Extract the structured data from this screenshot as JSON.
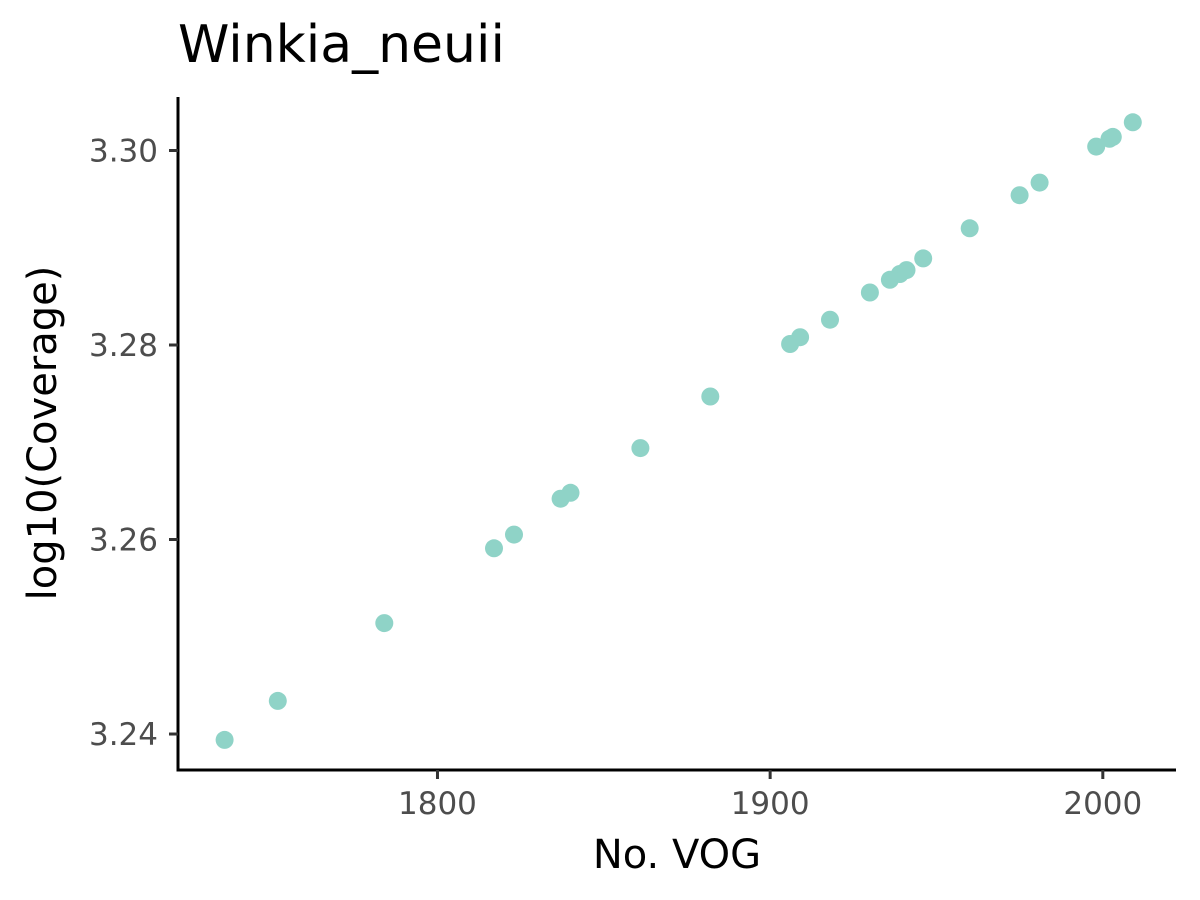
{
  "chart_data": {
    "type": "scatter",
    "title": "Winkia_neuii",
    "xlabel": "No. VOG",
    "ylabel": "log10(Coverage)",
    "xlim": [
      1722,
      2022
    ],
    "ylim": [
      3.2363,
      3.3055
    ],
    "x_ticks": [
      1800,
      1900,
      2000
    ],
    "x_tick_labels": [
      "1800",
      "1900",
      "2000"
    ],
    "y_ticks": [
      3.24,
      3.26,
      3.28,
      3.3
    ],
    "y_tick_labels": [
      "3.24",
      "3.26",
      "3.28",
      "3.30"
    ],
    "grid": false,
    "legend": "none",
    "point_color": "#8fd3c7",
    "series": [
      {
        "x": [
          1736,
          1752,
          1784,
          1817,
          1823,
          1837,
          1840,
          1861,
          1882,
          1906,
          1909,
          1918,
          1930,
          1936,
          1939,
          1941,
          1946,
          1960,
          1975,
          1981,
          1998,
          2002,
          2003,
          2009
        ],
        "y": [
          3.2394,
          3.2434,
          3.2514,
          3.2591,
          3.2605,
          3.2642,
          3.2648,
          3.2694,
          3.2747,
          3.2801,
          3.2808,
          3.2826,
          3.2854,
          3.2867,
          3.2873,
          3.2877,
          3.2889,
          3.292,
          3.2954,
          3.2967,
          3.3004,
          3.3012,
          3.3014,
          3.3029
        ]
      }
    ]
  }
}
